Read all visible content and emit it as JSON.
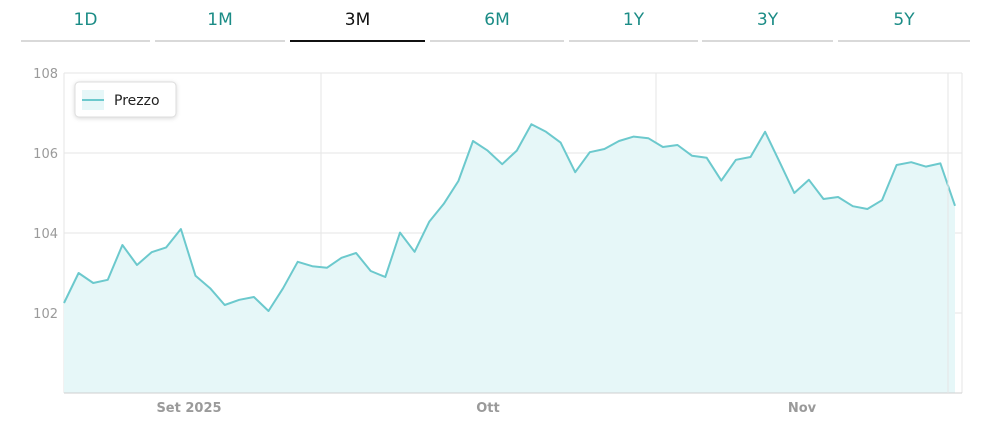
{
  "tabs": [
    {
      "label": "1D",
      "active": false
    },
    {
      "label": "1M",
      "active": false
    },
    {
      "label": "3M",
      "active": true
    },
    {
      "label": "6M",
      "active": false
    },
    {
      "label": "1Y",
      "active": false
    },
    {
      "label": "3Y",
      "active": false
    },
    {
      "label": "5Y",
      "active": false
    }
  ],
  "colors": {
    "accent": "#1b8c86",
    "line": "#6cc9cd",
    "fill": "#e6f7f8",
    "grid": "#e6e6e6",
    "axis_text": "#9a9a9a"
  },
  "chart_data": {
    "type": "area",
    "legend": {
      "label": "Prezzo",
      "position": "top-left"
    },
    "y_ticks": [
      102,
      104,
      106,
      108
    ],
    "ylim": [
      100,
      108
    ],
    "x_ticks": [
      "Set 2025",
      "Ott",
      "Nov"
    ],
    "grid": true,
    "series": [
      {
        "name": "Prezzo",
        "values": [
          102.25,
          103.0,
          102.75,
          102.83,
          103.7,
          103.2,
          103.52,
          103.64,
          104.1,
          102.93,
          102.62,
          102.2,
          102.33,
          102.4,
          102.05,
          102.62,
          103.28,
          103.17,
          103.13,
          103.38,
          103.5,
          103.05,
          102.9,
          104.01,
          103.53,
          104.28,
          104.73,
          105.3,
          106.3,
          106.06,
          105.72,
          106.06,
          106.72,
          106.53,
          106.26,
          105.52,
          106.02,
          106.1,
          106.3,
          106.41,
          106.37,
          106.15,
          106.2,
          105.93,
          105.88,
          105.31,
          105.83,
          105.9,
          106.53,
          105.77,
          105.0,
          105.33,
          104.85,
          104.9,
          104.67,
          104.6,
          104.82,
          105.7,
          105.77,
          105.66,
          105.74,
          104.68
        ]
      }
    ]
  }
}
